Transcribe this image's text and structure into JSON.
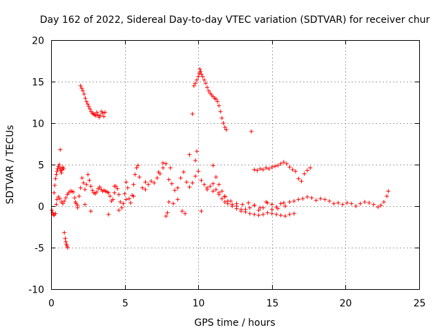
{
  "chart_data": {
    "type": "scatter",
    "title": "Day 162 of 2022, Sidereal Day-to-day VTEC variation (SDTVAR) for receiver chur",
    "xlabel": "GPS time / hours",
    "ylabel": "SDTVAR / TECUs",
    "xlim": [
      0,
      25
    ],
    "ylim": [
      -10,
      20
    ],
    "xticks": [
      0,
      5,
      10,
      15,
      20,
      25
    ],
    "xtick_labels": [
      "0",
      "5",
      "10",
      "15",
      "20",
      "25"
    ],
    "yticks": [
      -10,
      -5,
      0,
      5,
      10,
      15,
      20
    ],
    "ytick_labels": [
      "-10",
      "-5",
      "0",
      "5",
      "10",
      "15",
      "20"
    ],
    "grid": true,
    "marker": "+",
    "color": "#ff0000",
    "series": [
      {
        "name": "SDTVAR",
        "x": [
          0.05,
          0.1,
          0.15,
          0.2,
          0.3,
          0.35,
          0.4,
          0.5,
          0.6,
          0.7,
          0.8,
          0.9,
          1.0,
          1.1,
          1.2,
          1.3,
          1.4,
          1.5,
          1.6,
          1.65,
          1.7,
          1.8,
          1.9,
          2.0,
          2.1,
          2.2,
          2.3,
          2.4,
          2.5,
          2.6,
          2.7,
          2.8,
          2.9,
          3.0,
          3.1,
          3.2,
          3.3,
          3.4,
          3.5,
          3.6,
          3.7,
          3.8,
          3.9,
          4.0,
          4.1,
          4.2,
          4.3,
          4.4,
          4.5,
          4.6,
          4.7,
          4.8,
          4.9,
          5.0,
          5.1,
          5.2,
          5.3,
          5.4,
          5.5,
          5.6,
          5.7,
          5.8,
          5.9,
          6.0,
          6.2,
          6.4,
          6.6,
          6.8,
          7.0,
          7.2,
          7.4,
          7.6,
          7.8,
          8.0,
          8.2,
          8.4,
          8.6,
          8.8,
          9.0,
          9.2,
          9.4,
          9.6,
          9.8,
          10.0,
          10.2,
          10.4,
          10.6,
          10.8,
          11.0,
          11.2,
          11.4,
          11.6,
          11.8,
          12.0,
          12.3,
          12.6,
          12.9,
          13.2,
          13.5,
          13.8,
          14.1,
          14.4,
          14.7,
          15.0,
          15.3,
          15.6,
          15.9,
          16.2,
          16.5,
          16.8,
          17.1,
          17.4,
          17.7,
          18.0,
          18.3,
          18.6,
          18.9,
          19.2,
          19.5,
          19.8,
          20.1,
          20.4,
          20.7,
          21.0,
          21.3,
          21.6,
          21.9,
          22.2,
          22.4,
          22.6,
          22.8,
          22.9,
          0.2,
          0.25,
          0.3,
          0.35,
          0.4,
          0.45,
          0.5,
          0.55,
          0.6,
          0.65,
          0.7,
          0.75,
          0.8,
          0.85,
          0.62,
          0.9,
          0.96,
          1.0,
          1.04,
          1.08,
          1.12,
          2.0,
          2.08,
          2.16,
          2.24,
          2.32,
          2.4,
          2.48,
          2.56,
          2.64,
          2.72,
          2.8,
          2.88,
          2.96,
          3.04,
          3.1,
          3.18,
          3.26,
          3.34,
          3.42,
          3.5,
          3.58,
          3.66,
          9.6,
          9.7,
          9.8,
          9.9,
          10.0,
          10.05,
          10.1,
          10.15,
          10.2,
          10.3,
          10.4,
          10.5,
          10.6,
          10.7,
          10.8,
          10.9,
          11.0,
          11.1,
          11.2,
          11.3,
          11.4,
          11.5,
          11.6,
          11.7,
          11.8,
          11.9,
          13.6,
          13.8,
          14.0,
          14.2,
          14.4,
          14.6,
          14.8,
          15.0,
          15.2,
          15.4,
          15.6,
          15.8,
          16.0,
          16.2,
          16.4,
          16.6,
          16.8,
          17.0,
          17.2,
          17.4,
          17.6,
          11.0,
          11.2,
          11.4,
          11.6,
          11.8,
          12.0,
          12.3,
          12.6,
          12.9,
          13.2,
          13.5,
          13.8,
          14.1,
          14.4,
          14.7,
          15.0,
          15.3,
          15.6,
          15.9,
          16.2,
          16.5,
          10.2,
          10.6,
          11.0,
          11.4,
          11.8,
          12.2,
          12.6,
          13.0,
          13.4,
          13.8,
          14.2,
          14.6,
          15.0,
          15.4,
          15.8,
          1.8,
          2.3,
          2.7,
          3.9,
          4.3,
          4.6,
          5.1,
          5.6,
          6.4,
          7.3,
          7.6,
          7.9,
          8.1,
          8.3,
          8.6,
          9.1,
          9.4,
          9.8,
          9.9,
          8.0,
          7.8,
          8.9
        ],
        "y": [
          -0.5,
          -0.8,
          -1.0,
          -1.1,
          -0.9,
          0.2,
          0.8,
          1.1,
          0.9,
          0.5,
          0.3,
          0.6,
          1.0,
          1.4,
          1.6,
          1.8,
          1.8,
          1.7,
          1.0,
          0.5,
          0.3,
          -0.2,
          1.2,
          2.2,
          3.4,
          2.8,
          2.0,
          2.6,
          3.8,
          3.1,
          2.4,
          1.9,
          1.6,
          1.5,
          1.7,
          2.1,
          2.3,
          2.0,
          1.8,
          1.9,
          1.8,
          1.7,
          1.6,
          1.2,
          0.6,
          0.8,
          1.6,
          2.4,
          2.1,
          1.4,
          0.5,
          -0.2,
          0.3,
          1.5,
          2.9,
          2.2,
          0.9,
          0.4,
          1.3,
          2.6,
          3.8,
          4.6,
          4.9,
          3.5,
          2.2,
          2.0,
          2.6,
          3.0,
          2.8,
          3.4,
          3.9,
          4.6,
          5.1,
          3.2,
          2.7,
          1.9,
          2.2,
          3.4,
          4.1,
          2.9,
          2.3,
          2.8,
          3.6,
          4.2,
          3.1,
          2.6,
          2.2,
          2.4,
          2.7,
          2.0,
          1.4,
          0.9,
          0.5,
          0.3,
          0.0,
          -0.3,
          -0.6,
          -0.4,
          -0.2,
          0.1,
          -0.5,
          -0.2,
          0.4,
          -0.4,
          -0.1,
          0.3,
          0.0,
          0.5,
          0.6,
          0.8,
          0.9,
          1.1,
          1.0,
          0.7,
          0.9,
          0.8,
          0.6,
          0.3,
          0.4,
          0.2,
          0.4,
          0.3,
          0.0,
          0.3,
          0.5,
          0.4,
          0.2,
          -0.1,
          0.1,
          0.5,
          1.2,
          1.8,
          1.6,
          2.5,
          3.3,
          3.8,
          4.2,
          4.5,
          4.8,
          5.0,
          4.6,
          4.3,
          4.0,
          4.4,
          4.7,
          4.5,
          6.8,
          -3.2,
          -3.9,
          -4.3,
          -4.6,
          -4.8,
          -5.0,
          14.5,
          14.2,
          13.9,
          13.5,
          13.0,
          12.6,
          12.3,
          12.0,
          11.7,
          11.4,
          11.2,
          11.1,
          11.0,
          10.9,
          11.3,
          11.0,
          10.7,
          10.9,
          11.4,
          11.2,
          10.8,
          11.3,
          11.1,
          14.5,
          14.8,
          15.2,
          15.6,
          16.0,
          16.5,
          16.2,
          15.9,
          15.6,
          15.2,
          14.8,
          14.3,
          13.9,
          13.6,
          13.4,
          13.2,
          13.0,
          12.9,
          12.6,
          12.1,
          11.4,
          10.6,
          10.0,
          9.5,
          9.2,
          9.0,
          4.4,
          4.3,
          4.5,
          4.4,
          4.6,
          4.5,
          4.7,
          4.8,
          4.9,
          5.1,
          5.3,
          5.1,
          4.7,
          4.4,
          4.2,
          3.3,
          3.0,
          3.9,
          4.3,
          4.6,
          4.9,
          3.5,
          2.6,
          1.8,
          1.2,
          0.6,
          0.2,
          0.0,
          -0.4,
          -0.7,
          -0.9,
          -1.0,
          -1.1,
          -1.0,
          -0.8,
          -0.9,
          -1.0,
          -1.1,
          -1.2,
          -1.0,
          -0.9,
          -0.6,
          2.0,
          1.8,
          1.6,
          1.1,
          0.6,
          0.3,
          0.2,
          0.4,
          0.1,
          -0.2,
          0.5,
          0.2,
          -0.3,
          0.4,
          0.1,
          0.2,
          -0.6,
          -1.0,
          2.4,
          -0.5,
          0.8,
          1.2,
          2.9,
          4.1,
          5.2,
          -0.8,
          4.6,
          0.3,
          0.8,
          -0.9,
          6.2,
          5.5,
          6.6,
          0.5,
          -1.2,
          -0.6
        ]
      }
    ]
  }
}
